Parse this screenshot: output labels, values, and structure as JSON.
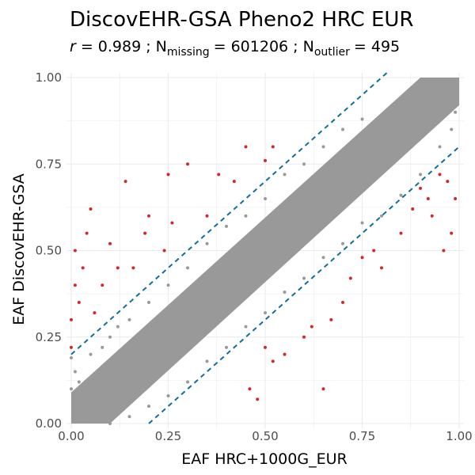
{
  "chart_data": {
    "type": "scatter",
    "title": "DiscovEHR-GSA Pheno2 HRC EUR",
    "subtitle": {
      "r_symbol": "r",
      "r_value": "= 0.989 ; N",
      "missing_sub": "missing",
      "missing_value": "= 601206 ; N",
      "outlier_sub": "outlier",
      "outlier_value": "= 495"
    },
    "xlabel": "EAF HRC+1000G_EUR",
    "ylabel": "EAF DiscovEHR-GSA",
    "xlim": [
      0,
      1
    ],
    "ylim": [
      0,
      1
    ],
    "x_ticks": [
      "0.00",
      "0.25",
      "0.50",
      "0.75",
      "1.00"
    ],
    "y_ticks": [
      "0.00",
      "0.25",
      "0.50",
      "0.75",
      "1.00"
    ],
    "grid": true,
    "reference_lines": [
      {
        "intercept": 0.2,
        "slope": 1
      },
      {
        "intercept": -0.2,
        "slope": 1
      }
    ],
    "series": [
      {
        "color": "#999999",
        "points": [
          [
            0.01,
            0.02
          ],
          [
            0.02,
            0.05
          ],
          [
            0.03,
            0.01
          ],
          [
            0.05,
            0.07
          ],
          [
            0.07,
            0.06
          ],
          [
            0.1,
            0.11
          ],
          [
            0.12,
            0.15
          ],
          [
            0.15,
            0.16
          ],
          [
            0.18,
            0.17
          ],
          [
            0.2,
            0.22
          ],
          [
            0.22,
            0.24
          ],
          [
            0.25,
            0.26
          ],
          [
            0.28,
            0.27
          ],
          [
            0.3,
            0.31
          ],
          [
            0.33,
            0.34
          ],
          [
            0.35,
            0.36
          ],
          [
            0.38,
            0.37
          ],
          [
            0.4,
            0.41
          ],
          [
            0.43,
            0.44
          ],
          [
            0.45,
            0.45
          ],
          [
            0.48,
            0.49
          ],
          [
            0.5,
            0.5
          ],
          [
            0.53,
            0.52
          ],
          [
            0.55,
            0.56
          ],
          [
            0.58,
            0.59
          ],
          [
            0.6,
            0.6
          ],
          [
            0.63,
            0.62
          ],
          [
            0.65,
            0.66
          ],
          [
            0.68,
            0.69
          ],
          [
            0.7,
            0.7
          ],
          [
            0.73,
            0.72
          ],
          [
            0.75,
            0.76
          ],
          [
            0.78,
            0.79
          ],
          [
            0.8,
            0.8
          ],
          [
            0.83,
            0.82
          ],
          [
            0.85,
            0.86
          ],
          [
            0.88,
            0.89
          ],
          [
            0.9,
            0.9
          ],
          [
            0.93,
            0.92
          ],
          [
            0.95,
            0.96
          ],
          [
            0.98,
            0.98
          ],
          [
            0.99,
            0.99
          ],
          [
            0.0,
            0.19
          ],
          [
            0.0,
            0.1
          ],
          [
            0.01,
            0.15
          ],
          [
            0.02,
            0.12
          ],
          [
            0.05,
            0.2
          ],
          [
            0.08,
            0.22
          ],
          [
            0.1,
            0.25
          ],
          [
            0.12,
            0.28
          ],
          [
            0.15,
            0.3
          ],
          [
            0.2,
            0.35
          ],
          [
            0.25,
            0.4
          ],
          [
            0.3,
            0.45
          ],
          [
            0.35,
            0.52
          ],
          [
            0.4,
            0.57
          ],
          [
            0.45,
            0.6
          ],
          [
            0.5,
            0.65
          ],
          [
            0.55,
            0.72
          ],
          [
            0.6,
            0.75
          ],
          [
            0.65,
            0.8
          ],
          [
            0.7,
            0.85
          ],
          [
            0.75,
            0.88
          ],
          [
            0.1,
            0.0
          ],
          [
            0.15,
            0.02
          ],
          [
            0.2,
            0.05
          ],
          [
            0.25,
            0.08
          ],
          [
            0.3,
            0.12
          ],
          [
            0.35,
            0.18
          ],
          [
            0.4,
            0.22
          ],
          [
            0.45,
            0.28
          ],
          [
            0.5,
            0.32
          ],
          [
            0.55,
            0.38
          ],
          [
            0.6,
            0.42
          ],
          [
            0.65,
            0.48
          ],
          [
            0.7,
            0.52
          ],
          [
            0.75,
            0.58
          ],
          [
            0.8,
            0.6
          ],
          [
            0.85,
            0.66
          ],
          [
            0.9,
            0.72
          ],
          [
            0.95,
            0.8
          ],
          [
            0.98,
            0.85
          ],
          [
            0.99,
            0.9
          ]
        ]
      },
      {
        "color": "#d62728",
        "points": [
          [
            0.0,
            0.22
          ],
          [
            0.0,
            0.3
          ],
          [
            0.01,
            0.4
          ],
          [
            0.01,
            0.5
          ],
          [
            0.02,
            0.35
          ],
          [
            0.03,
            0.45
          ],
          [
            0.04,
            0.55
          ],
          [
            0.05,
            0.62
          ],
          [
            0.08,
            0.4
          ],
          [
            0.1,
            0.52
          ],
          [
            0.14,
            0.7
          ],
          [
            0.16,
            0.45
          ],
          [
            0.19,
            0.55
          ],
          [
            0.2,
            0.6
          ],
          [
            0.24,
            0.5
          ],
          [
            0.26,
            0.58
          ],
          [
            0.3,
            0.75
          ],
          [
            0.35,
            0.6
          ],
          [
            0.38,
            0.72
          ],
          [
            0.42,
            0.7
          ],
          [
            0.45,
            0.8
          ],
          [
            0.5,
            0.76
          ],
          [
            0.52,
            0.8
          ],
          [
            0.25,
            0.72
          ],
          [
            0.12,
            0.45
          ],
          [
            0.06,
            0.32
          ],
          [
            0.5,
            0.22
          ],
          [
            0.52,
            0.18
          ],
          [
            0.6,
            0.25
          ],
          [
            0.62,
            0.28
          ],
          [
            0.65,
            0.1
          ],
          [
            0.7,
            0.35
          ],
          [
            0.72,
            0.42
          ],
          [
            0.75,
            0.48
          ],
          [
            0.78,
            0.5
          ],
          [
            0.8,
            0.45
          ],
          [
            0.85,
            0.55
          ],
          [
            0.88,
            0.62
          ],
          [
            0.9,
            0.68
          ],
          [
            0.92,
            0.65
          ],
          [
            0.95,
            0.72
          ],
          [
            0.97,
            0.7
          ],
          [
            0.98,
            0.55
          ],
          [
            0.99,
            0.65
          ],
          [
            0.96,
            0.5
          ],
          [
            0.93,
            0.6
          ],
          [
            0.46,
            0.1
          ],
          [
            0.48,
            0.07
          ],
          [
            0.55,
            0.2
          ],
          [
            0.67,
            0.3
          ]
        ]
      }
    ]
  }
}
